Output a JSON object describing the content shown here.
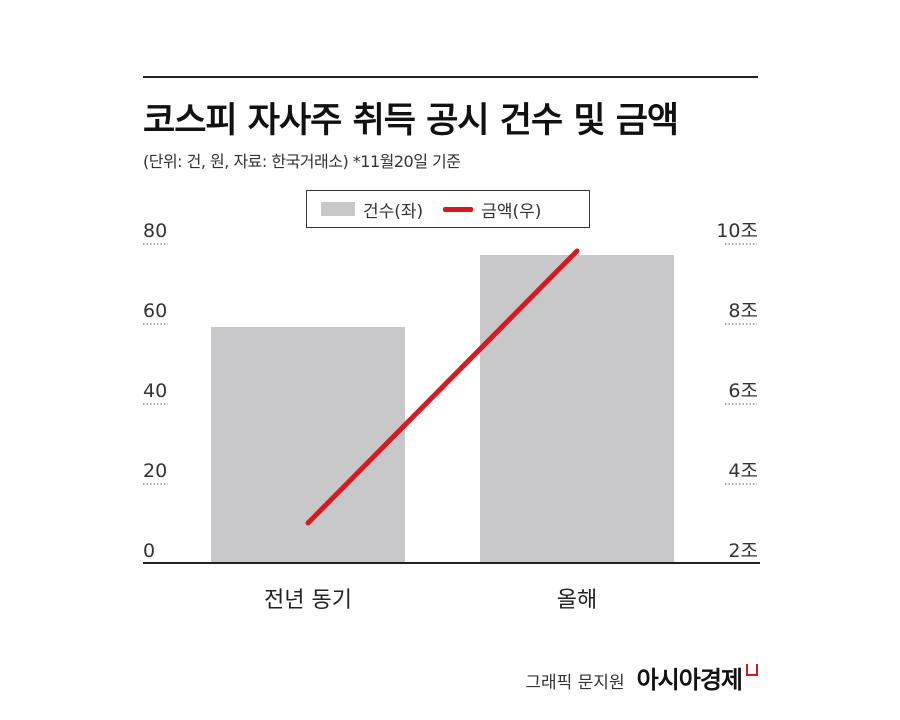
{
  "title": "코스피 자사주 취득 공시 건수 및 금액",
  "subtitle": "(단위: 건, 원, 자료: 한국거래소)  *11월20일 기준",
  "legend": {
    "bar_label": "건수(좌)",
    "line_label": "금액(우)"
  },
  "footer": {
    "credit": "그래픽 문지원",
    "brand": "아시아경제"
  },
  "colors": {
    "bar": "#c8c8ca",
    "line": "#d71a21",
    "axis": "#222222"
  },
  "chart_data": {
    "type": "bar+line",
    "categories": [
      "전년 동기",
      "올해"
    ],
    "series": [
      {
        "name": "건수(좌)",
        "type": "bar",
        "axis": "left",
        "values": [
          59,
          77
        ]
      },
      {
        "name": "금액(우)",
        "type": "line",
        "axis": "right",
        "values": [
          3.0,
          9.8
        ]
      }
    ],
    "y_left": {
      "range": [
        0,
        80
      ],
      "ticks": [
        0,
        20,
        40,
        60,
        80
      ],
      "tick_labels": [
        "0",
        "20",
        "40",
        "60",
        "80"
      ]
    },
    "y_right": {
      "range": [
        2,
        10
      ],
      "ticks": [
        2,
        4,
        6,
        8,
        10
      ],
      "tick_labels": [
        "2조",
        "4조",
        "6조",
        "8조",
        "10조"
      ]
    },
    "grid": "dotted tick guides only",
    "legend_position": "top-center"
  }
}
